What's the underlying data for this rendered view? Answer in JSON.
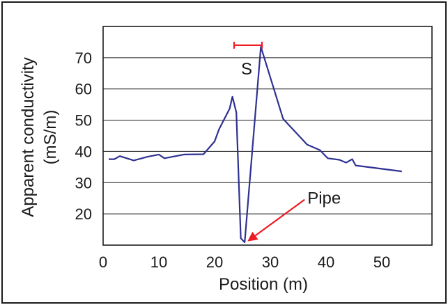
{
  "chart_data": {
    "type": "line",
    "xlabel": "Position (m)",
    "ylabel_lines": [
      "Apparent conductivity",
      "(mS/m)"
    ],
    "xlim": [
      0,
      59
    ],
    "ylim": [
      10,
      80
    ],
    "xticks": [
      0,
      10,
      20,
      30,
      40,
      50
    ],
    "yticks": [
      20,
      30,
      40,
      50,
      60,
      70
    ],
    "grid": "horizontal",
    "series": [
      {
        "color": "#2e3192",
        "x": [
          1,
          2,
          3,
          5.5,
          8,
          10,
          11,
          14.5,
          18,
          20,
          20.8,
          22.7,
          23.2,
          23.9,
          24.7,
          25.4,
          28.3,
          32.3,
          36.6,
          38.9,
          40.3,
          42.4,
          43.6,
          44.7,
          45.3,
          53.6
        ],
        "y": [
          37.5,
          37.5,
          38.5,
          37.1,
          38.3,
          39.0,
          37.8,
          39.0,
          39.1,
          43.2,
          47.1,
          53.7,
          57.5,
          52.5,
          12.2,
          10.9,
          73.5,
          50.4,
          42.2,
          40.4,
          37.8,
          37.3,
          36.4,
          37.5,
          35.5,
          33.6
        ]
      }
    ],
    "annotations": {
      "segment_label": "S",
      "segment_color": "#ed1c24",
      "segment_x": [
        23.5,
        28.5
      ],
      "segment_y": 74,
      "pipe_label": "Pipe",
      "pipe_color": "#ed1c24",
      "pipe_tip": [
        25.9,
        11.2
      ]
    }
  }
}
